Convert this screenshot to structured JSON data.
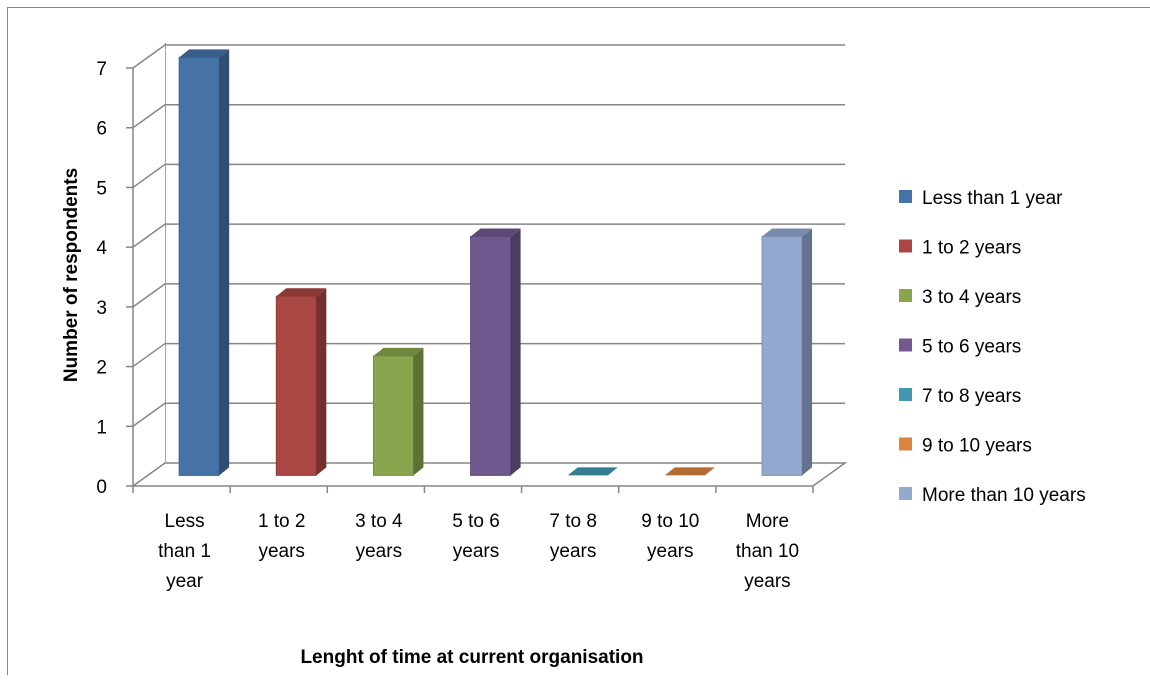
{
  "chart_data": {
    "type": "bar",
    "style": "3d-column",
    "title": "",
    "xlabel": "Lenght of time at current organisation",
    "ylabel": "Number of respondents",
    "ylim": [
      0,
      7
    ],
    "yticks": [
      "0",
      "1",
      "2",
      "3",
      "4",
      "5",
      "6",
      "7"
    ],
    "grid": true,
    "legend_position": "right",
    "categories": [
      "Less than 1 year",
      "1 to 2 years",
      "3 to 4 years",
      "5 to 6 years",
      "7 to 8 years",
      "9 to 10 years",
      "More than 10 years"
    ],
    "category_labels": [
      [
        "Less",
        "than 1",
        "year"
      ],
      [
        "1 to 2",
        "years"
      ],
      [
        "3 to 4",
        "years"
      ],
      [
        "5 to 6",
        "years"
      ],
      [
        "7 to 8",
        "years"
      ],
      [
        "9 to 10",
        "years"
      ],
      [
        "More",
        "than 10",
        "years"
      ]
    ],
    "values": [
      7,
      3,
      2,
      4,
      0,
      0,
      4
    ],
    "colors": [
      "#4572A7",
      "#AA4643",
      "#89A54E",
      "#71588F",
      "#4198AF",
      "#DB843D",
      "#93A9CF"
    ],
    "legend": [
      "Less than 1 year",
      "1 to 2 years",
      "3 to 4 years",
      "5 to 6 years",
      "7 to 8 years",
      "9 to 10 years",
      "More than 10 years"
    ]
  }
}
